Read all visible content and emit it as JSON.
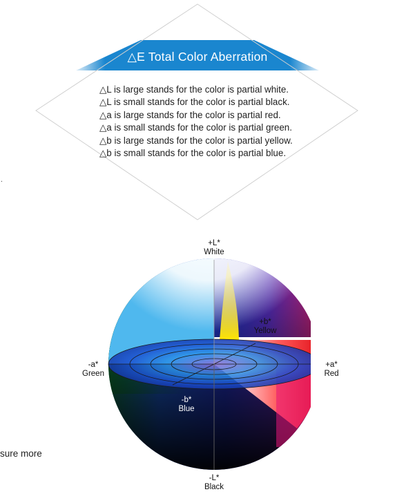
{
  "banner": {
    "title": "△E Total Color Aberration",
    "color": "#1a86cf"
  },
  "descriptions": [
    "△L is large stands for the color is partial white.",
    "△L is small stands for the color is partial black.",
    "△a is large stands for the color is partial red.",
    "△a is small stands for the color is partial green.",
    "△b is large stands for the color is partial yellow.",
    "△b is small stands for the color is partial blue."
  ],
  "stray_mark": ".",
  "clipped_text": "sure more",
  "color_space": {
    "plus_l": {
      "code": "+L*",
      "name": "White"
    },
    "minus_l": {
      "code": "-L*",
      "name": "Black"
    },
    "plus_a": {
      "code": "+a*",
      "name": "Red"
    },
    "minus_a": {
      "code": "-a*",
      "name": "Green"
    },
    "plus_b": {
      "code": "+b*",
      "name": "Yellow"
    },
    "minus_b": {
      "code": "-b*",
      "name": "Blue"
    }
  }
}
